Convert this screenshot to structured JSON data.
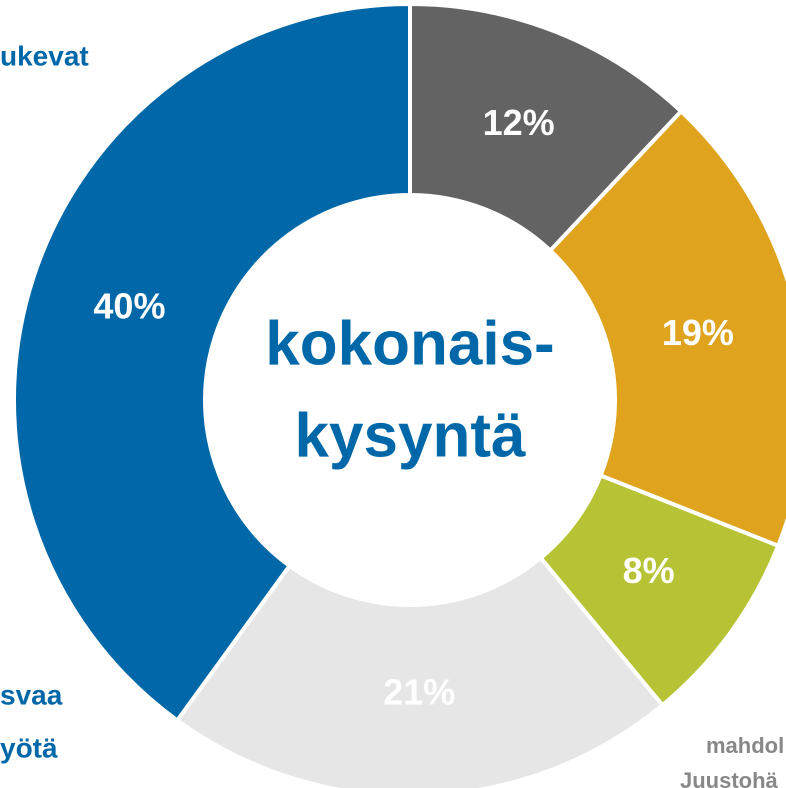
{
  "chart_data": {
    "type": "donut",
    "center_text": [
      "kokonais-",
      "kysyntä"
    ],
    "values": [
      12,
      19,
      8,
      21,
      40
    ],
    "value_labels": [
      "12%",
      "19%",
      "8%",
      "21%",
      "40%"
    ],
    "colors": [
      "#636363",
      "#e0a31e",
      "#b5c334",
      "#e5e6e5",
      "#0068a8"
    ],
    "annotations": [
      "ukevat",
      "svaa",
      "yötä",
      "mahdol",
      "Juustohä"
    ]
  }
}
